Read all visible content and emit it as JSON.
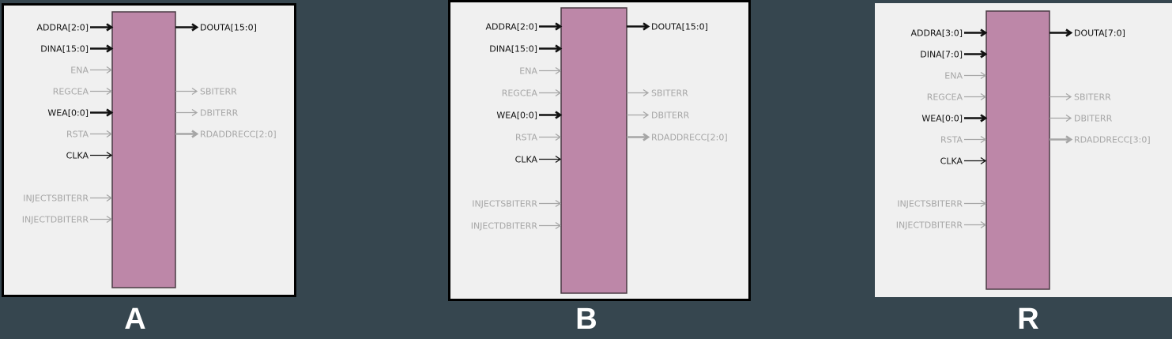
{
  "diagrams": [
    {
      "caption": "A",
      "inputs": [
        {
          "label": "ADDRA[2:0]",
          "active": true,
          "bus": true
        },
        {
          "label": "DINA[15:0]",
          "active": true,
          "bus": true
        },
        {
          "label": "ENA",
          "active": false,
          "bus": false
        },
        {
          "label": "REGCEA",
          "active": false,
          "bus": false
        },
        {
          "label": "WEA[0:0]",
          "active": true,
          "bus": true
        },
        {
          "label": "RSTA",
          "active": false,
          "bus": false
        },
        {
          "label": "CLKA",
          "active": true,
          "bus": false
        },
        {
          "label": "INJECTSBITERR",
          "active": false,
          "bus": false
        },
        {
          "label": "INJECTDBITERR",
          "active": false,
          "bus": false
        }
      ],
      "outputs": [
        {
          "label": "DOUTA[15:0]",
          "active": true,
          "bus": true
        },
        {
          "label": "SBITERR",
          "active": false,
          "bus": false
        },
        {
          "label": "DBITERR",
          "active": false,
          "bus": false
        },
        {
          "label": "RDADDRECC[2:0]",
          "active": false,
          "bus": true
        }
      ]
    },
    {
      "caption": "B",
      "inputs": [
        {
          "label": "ADDRA[2:0]",
          "active": true,
          "bus": true
        },
        {
          "label": "DINA[15:0]",
          "active": true,
          "bus": true
        },
        {
          "label": "ENA",
          "active": false,
          "bus": false
        },
        {
          "label": "REGCEA",
          "active": false,
          "bus": false
        },
        {
          "label": "WEA[0:0]",
          "active": true,
          "bus": true
        },
        {
          "label": "RSTA",
          "active": false,
          "bus": false
        },
        {
          "label": "CLKA",
          "active": true,
          "bus": false
        },
        {
          "label": "INJECTSBITERR",
          "active": false,
          "bus": false
        },
        {
          "label": "INJECTDBITERR",
          "active": false,
          "bus": false
        }
      ],
      "outputs": [
        {
          "label": "DOUTA[15:0]",
          "active": true,
          "bus": true
        },
        {
          "label": "SBITERR",
          "active": false,
          "bus": false
        },
        {
          "label": "DBITERR",
          "active": false,
          "bus": false
        },
        {
          "label": "RDADDRECC[2:0]",
          "active": false,
          "bus": true
        }
      ]
    },
    {
      "caption": "R",
      "inputs": [
        {
          "label": "ADDRA[3:0]",
          "active": true,
          "bus": true
        },
        {
          "label": "DINA[7:0]",
          "active": true,
          "bus": true
        },
        {
          "label": "ENA",
          "active": false,
          "bus": false
        },
        {
          "label": "REGCEA",
          "active": false,
          "bus": false
        },
        {
          "label": "WEA[0:0]",
          "active": true,
          "bus": true
        },
        {
          "label": "RSTA",
          "active": false,
          "bus": false
        },
        {
          "label": "CLKA",
          "active": true,
          "bus": false
        },
        {
          "label": "INJECTSBITERR",
          "active": false,
          "bus": false
        },
        {
          "label": "INJECTDBITERR",
          "active": false,
          "bus": false
        }
      ],
      "outputs": [
        {
          "label": "DOUTA[7:0]",
          "active": true,
          "bus": true
        },
        {
          "label": "SBITERR",
          "active": false,
          "bus": false
        },
        {
          "label": "DBITERR",
          "active": false,
          "bus": false
        },
        {
          "label": "RDADDRECC[3:0]",
          "active": false,
          "bus": true
        }
      ]
    }
  ],
  "colors": {
    "block_fill": "#bd87a8",
    "block_stroke": "#4a3a44",
    "active_signal": "#111111",
    "inactive_signal": "#a6a6a6",
    "panel_bg": "#f0f0f0",
    "page_bg": "#36464f"
  }
}
